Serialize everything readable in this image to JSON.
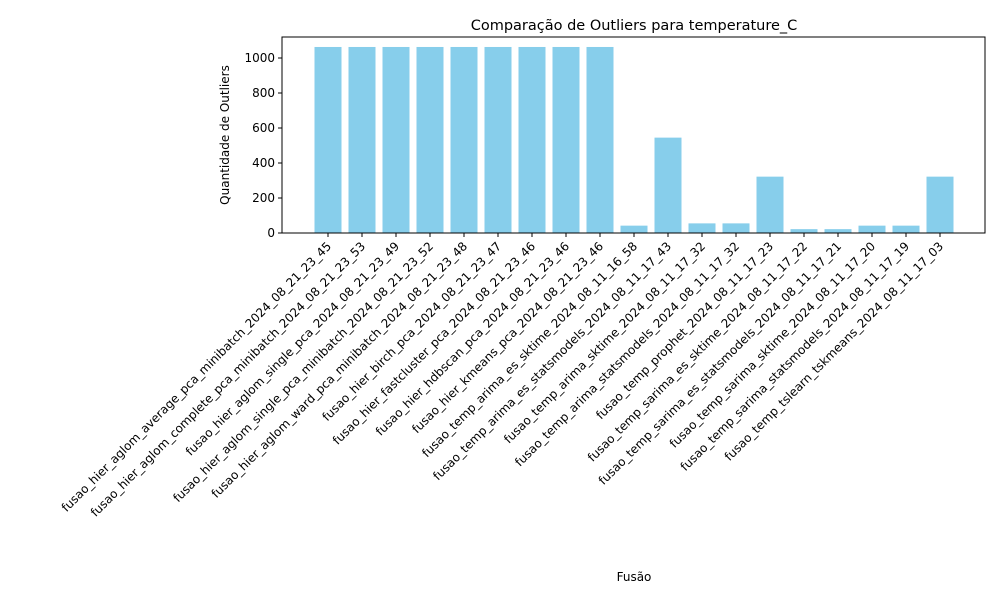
{
  "chart_data": {
    "type": "bar",
    "title": "Comparação de Outliers para temperature_C",
    "xlabel": "Fusão",
    "ylabel": "Quantidade de Outliers",
    "ylim": [
      0,
      1120
    ],
    "yticks": [
      0,
      200,
      400,
      600,
      800,
      1000
    ],
    "grid": false,
    "bar_color": "#87ceeb",
    "categories": [
      "fusao_hier_aglom_average_pca_minibatch_2024_08_21_23_45",
      "fusao_hier_aglom_complete_pca_minibatch_2024_08_21_23_53",
      "fusao_hier_aglom_single_pca_2024_08_21_23_49",
      "fusao_hier_aglom_single_pca_minibatch_2024_08_21_23_52",
      "fusao_hier_aglom_ward_pca_minibatch_2024_08_21_23_48",
      "fusao_hier_birch_pca_2024_08_21_23_47",
      "fusao_hier_fastcluster_pca_2024_08_21_23_46",
      "fusao_hier_hdbscan_pca_2024_08_21_23_46",
      "fusao_hier_kmeans_pca_2024_08_21_23_46",
      "fusao_temp_arima_es_sktime_2024_08_11_16_58",
      "fusao_temp_arima_es_statsmodels_2024_08_11_17_43",
      "fusao_temp_arima_sktime_2024_08_11_17_32",
      "fusao_temp_arima_statsmodels_2024_08_11_17_32",
      "fusao_temp_prophet_2024_08_11_17_23",
      "fusao_temp_sarima_es_sktime_2024_08_11_17_22",
      "fusao_temp_sarima_es_statsmodels_2024_08_11_17_21",
      "fusao_temp_sarima_sktime_2024_08_11_17_20",
      "fusao_temp_sarima_statsmodels_2024_08_11_17_19",
      "fusao_temp_tslearn_tskmeans_2024_08_11_17_03"
    ],
    "values": [
      1063,
      1063,
      1063,
      1063,
      1063,
      1063,
      1063,
      1063,
      1063,
      42,
      545,
      55,
      55,
      322,
      22,
      22,
      42,
      42,
      322
    ]
  }
}
